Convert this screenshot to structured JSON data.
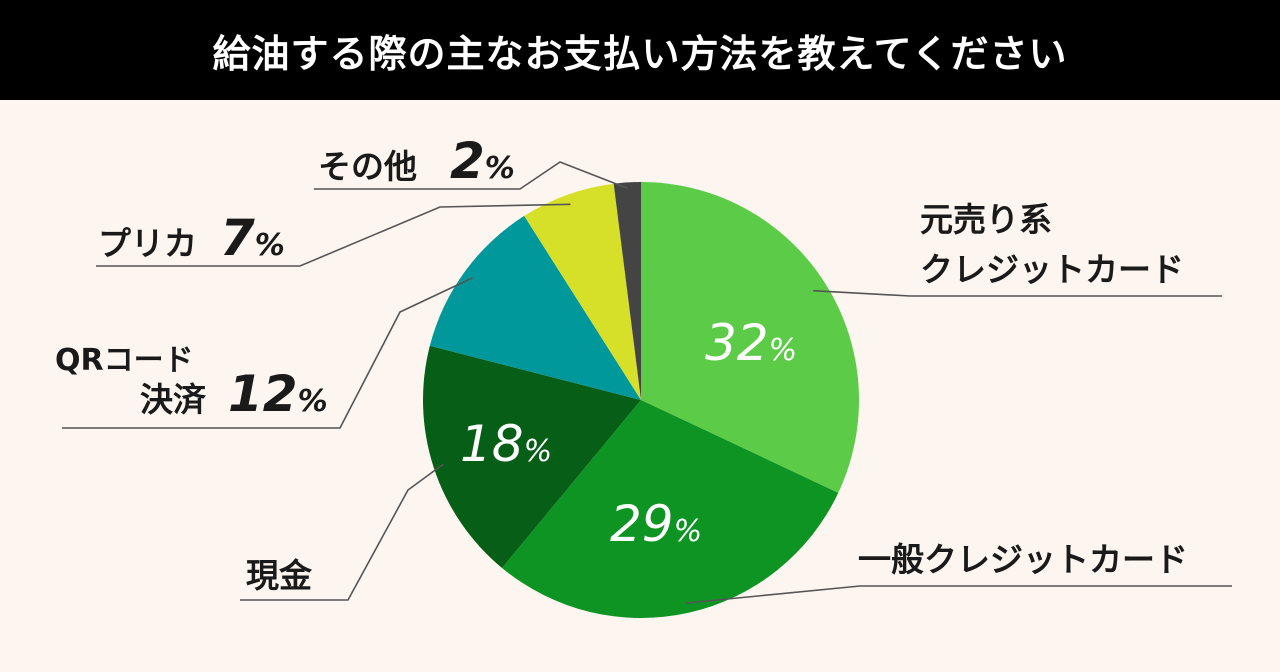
{
  "header": {
    "title": "給油する際の主なお支払い方法を教えてください"
  },
  "chart_data": {
    "type": "pie",
    "title": "給油する際の主なお支払い方法を教えてください",
    "unit": "%",
    "slices": [
      {
        "label": "元売り系クレジットカード",
        "label_lines": [
          "元売り系",
          "クレジットカード"
        ],
        "value": 32,
        "color": "#5ccc48"
      },
      {
        "label": "一般クレジットカード",
        "label_lines": [
          "一般クレジットカード"
        ],
        "value": 29,
        "color": "#0d9423"
      },
      {
        "label": "現金",
        "label_lines": [
          "現金"
        ],
        "value": 18,
        "color": "#075f17"
      },
      {
        "label": "QRコード決済",
        "label_lines": [
          "QRコード",
          "決済"
        ],
        "value": 12,
        "color": "#00989b"
      },
      {
        "label": "プリカ",
        "label_lines": [
          "プリカ"
        ],
        "value": 7,
        "color": "#d7e028"
      },
      {
        "label": "その他",
        "label_lines": [
          "その他"
        ],
        "value": 2,
        "color": "#444444"
      }
    ]
  }
}
